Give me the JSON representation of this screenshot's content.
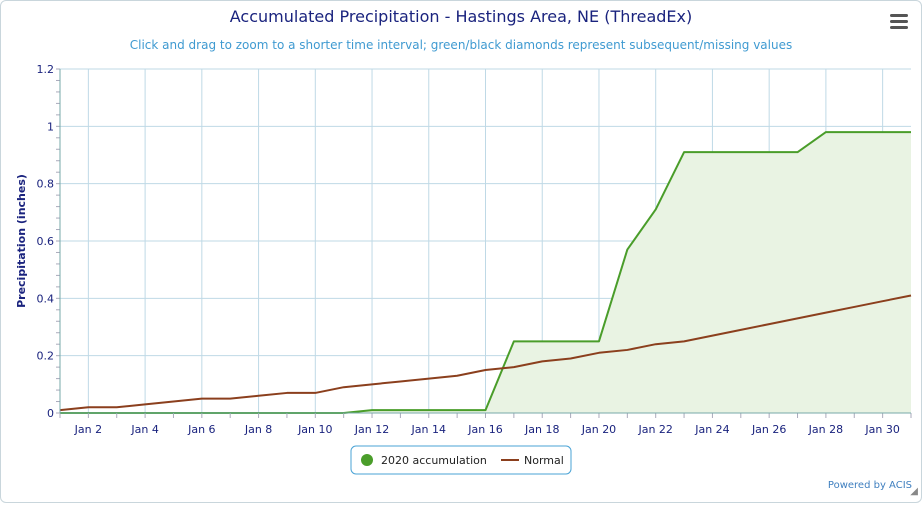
{
  "title": "Accumulated Precipitation - Hastings Area, NE (ThreadEx)",
  "subtitle": "Click and drag to zoom to a shorter time interval; green/black diamonds represent subsequent/missing values",
  "credits": "Powered by ACIS",
  "icons": {
    "menu": "hamburger-menu-icon",
    "resize": "resize-handle-icon"
  },
  "colors": {
    "accum": "#4a9d2a",
    "accum_fill": "#e9f3e3",
    "normal": "#8b3f1d",
    "grid": "#bfd9e6",
    "text": "#1a237e"
  },
  "chart_data": {
    "type": "area",
    "ylabel": "Precipitation (inches)",
    "xlabel": "",
    "ylim": [
      0,
      1.2
    ],
    "yticks": [
      0,
      0.2,
      0.4,
      0.6,
      0.8,
      1,
      1.2
    ],
    "xticks": [
      {
        "day": 2,
        "label": "Jan 2"
      },
      {
        "day": 4,
        "label": "Jan 4"
      },
      {
        "day": 6,
        "label": "Jan 6"
      },
      {
        "day": 8,
        "label": "Jan 8"
      },
      {
        "day": 10,
        "label": "Jan 10"
      },
      {
        "day": 12,
        "label": "Jan 12"
      },
      {
        "day": 14,
        "label": "Jan 14"
      },
      {
        "day": 16,
        "label": "Jan 16"
      },
      {
        "day": 18,
        "label": "Jan 18"
      },
      {
        "day": 20,
        "label": "Jan 20"
      },
      {
        "day": 22,
        "label": "Jan 22"
      },
      {
        "day": 24,
        "label": "Jan 24"
      },
      {
        "day": 26,
        "label": "Jan 26"
      },
      {
        "day": 28,
        "label": "Jan 28"
      },
      {
        "day": 30,
        "label": "Jan 30"
      }
    ],
    "xrange_days": [
      1,
      31
    ],
    "grid": true,
    "legend_position": "bottom-center",
    "series": [
      {
        "name": "2020 accumulation",
        "x": [
          1,
          2,
          3,
          4,
          5,
          6,
          7,
          8,
          9,
          10,
          11,
          12,
          13,
          14,
          15,
          16,
          17,
          18,
          19,
          20,
          21,
          22,
          23,
          24,
          25,
          26,
          27,
          28,
          29,
          30,
          31
        ],
        "values": [
          0,
          0,
          0,
          0,
          0,
          0,
          0,
          0,
          0,
          0,
          0,
          0.01,
          0.01,
          0.01,
          0.01,
          0.01,
          0.25,
          0.25,
          0.25,
          0.25,
          0.57,
          0.71,
          0.91,
          0.91,
          0.91,
          0.91,
          0.91,
          0.98,
          0.98,
          0.98,
          0.98
        ]
      },
      {
        "name": "Normal",
        "x": [
          1,
          2,
          3,
          4,
          5,
          6,
          7,
          8,
          9,
          10,
          11,
          12,
          13,
          14,
          15,
          16,
          17,
          18,
          19,
          20,
          21,
          22,
          23,
          24,
          25,
          26,
          27,
          28,
          29,
          30,
          31
        ],
        "values": [
          0.01,
          0.02,
          0.02,
          0.03,
          0.04,
          0.05,
          0.05,
          0.06,
          0.07,
          0.07,
          0.09,
          0.1,
          0.11,
          0.12,
          0.13,
          0.15,
          0.16,
          0.18,
          0.19,
          0.21,
          0.22,
          0.24,
          0.25,
          0.27,
          0.29,
          0.31,
          0.33,
          0.35,
          0.37,
          0.39,
          0.41
        ]
      }
    ]
  }
}
